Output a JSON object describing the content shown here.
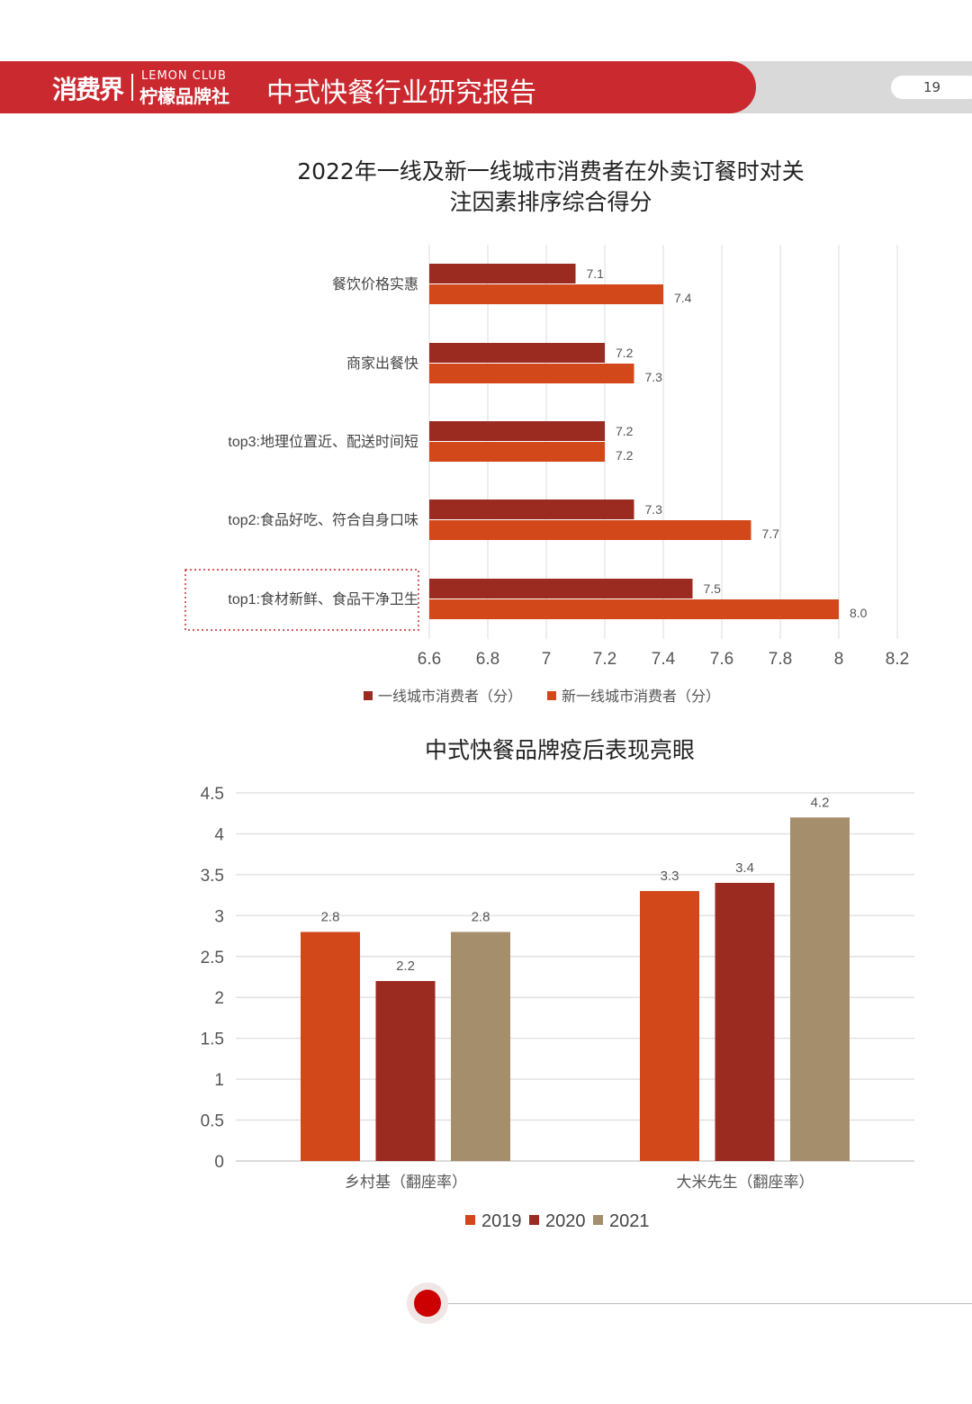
{
  "header": {
    "logo_main": "消费界",
    "logo_sub_en": "LEMON CLUB",
    "logo_sub_cn": "柠檬品牌社",
    "title": "中式快餐行业研究报告",
    "page_number": "19",
    "brand_color": "#c9292f"
  },
  "chart_data": [
    {
      "type": "bar",
      "orientation": "horizontal",
      "title_line1": "2022年一线及新一线城市消费者在外卖订餐时对关",
      "title_line2": "注因素排序综合得分",
      "categories": [
        "餐饮价格实惠",
        "商家出餐快",
        "top3:地理位置近、配送时间短",
        "top2:食品好吃、符合自身口味",
        "top1:食材新鲜、食品干净卫生"
      ],
      "series": [
        {
          "name": "一线城市消费者（分）",
          "color": "#9b2a20",
          "values": [
            7.1,
            7.2,
            7.2,
            7.3,
            7.5
          ],
          "labels": [
            "7.1",
            "7.2",
            "7.2",
            "7.3",
            "7.5"
          ]
        },
        {
          "name": "新一线城市消费者（分）",
          "color": "#d2481a",
          "values": [
            7.4,
            7.3,
            7.2,
            7.7,
            8.0
          ],
          "labels": [
            "7.4",
            "7.3",
            "7.2",
            "7.7",
            "8.0"
          ]
        }
      ],
      "xlim": [
        6.6,
        8.2
      ],
      "xticks": [
        "6.6",
        "6.8",
        "7",
        "7.2",
        "7.4",
        "7.6",
        "7.8",
        "8",
        "8.2"
      ],
      "grid": true,
      "legend": "bottom",
      "highlighted_category": "top1:食材新鲜、食品干净卫生"
    },
    {
      "type": "bar",
      "title": "中式快餐品牌疫后表现亮眼",
      "categories": [
        "乡村基（翻座率）",
        "大米先生（翻座率）"
      ],
      "series": [
        {
          "name": "2019",
          "color": "#d2481a",
          "values": [
            2.8,
            3.3
          ]
        },
        {
          "name": "2020",
          "color": "#9b2a20",
          "values": [
            2.2,
            3.4
          ]
        },
        {
          "name": "2021",
          "color": "#a58e6b",
          "values": [
            2.8,
            4.2
          ]
        }
      ],
      "ylim": [
        0,
        4.5
      ],
      "yticks": [
        "0",
        "0.5",
        "1",
        "1.5",
        "2",
        "2.5",
        "3",
        "3.5",
        "4",
        "4.5"
      ],
      "grid": true,
      "legend": "bottom"
    }
  ]
}
